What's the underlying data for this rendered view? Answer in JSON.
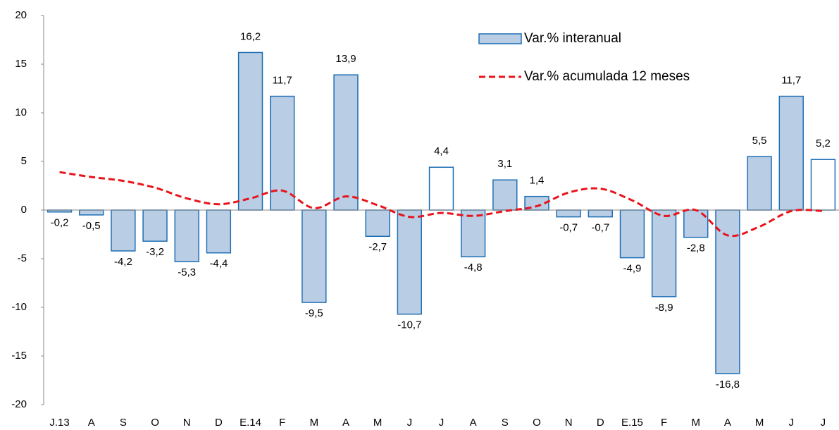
{
  "chart_data": {
    "type": "bar-line",
    "categories": [
      "J.13",
      "A",
      "S",
      "O",
      "N",
      "D",
      "E.14",
      "F",
      "M",
      "A",
      "M",
      "J",
      "J",
      "A",
      "S",
      "O",
      "N",
      "D",
      "E.15",
      "F",
      "M",
      "A",
      "M",
      "J",
      "J"
    ],
    "series": [
      {
        "name": "Var.% interanual",
        "type": "bar",
        "color": "#b9cde5",
        "edge_color": "#1f6fb5",
        "point_colors": [
          "#b9cde5",
          "#b9cde5",
          "#b9cde5",
          "#b9cde5",
          "#b9cde5",
          "#b9cde5",
          "#b9cde5",
          "#b9cde5",
          "#b9cde5",
          "#b9cde5",
          "#b9cde5",
          "#b9cde5",
          "#ffffff",
          "#b9cde5",
          "#b9cde5",
          "#b9cde5",
          "#b9cde5",
          "#b9cde5",
          "#b9cde5",
          "#b9cde5",
          "#b9cde5",
          "#b9cde5",
          "#b9cde5",
          "#b9cde5",
          "#ffffff"
        ],
        "values": [
          -0.2,
          -0.5,
          -4.2,
          -3.2,
          -5.3,
          -4.4,
          16.2,
          11.7,
          -9.5,
          13.9,
          -2.7,
          -10.7,
          4.4,
          -4.8,
          3.1,
          1.4,
          -0.7,
          -0.7,
          -4.9,
          -8.9,
          -2.8,
          -16.8,
          5.5,
          11.7,
          5.2
        ],
        "value_labels": [
          "-0,2",
          "-0,5",
          "-4,2",
          "-3,2",
          "-5,3",
          "-4,4",
          "16,2",
          "11,7",
          "-9,5",
          "13,9",
          "-2,7",
          "-10,7",
          "4,4",
          "-4,8",
          "3,1",
          "1,4",
          "-0,7",
          "-0,7",
          "-4,9",
          "-8,9",
          "-2,8",
          "-16,8",
          "5,5",
          "11,7",
          "5,2"
        ]
      },
      {
        "name": "Var.% acumulada 12 meses",
        "type": "line",
        "color": "#e8141b",
        "dashed": true,
        "values": [
          3.9,
          3.4,
          3.0,
          2.3,
          1.2,
          0.6,
          1.2,
          2.0,
          0.2,
          1.4,
          0.5,
          -0.7,
          -0.3,
          -0.6,
          -0.1,
          0.4,
          1.8,
          2.2,
          1.0,
          -0.6,
          0.0,
          -2.6,
          -1.7,
          -0.1,
          -0.1
        ]
      }
    ],
    "ylim": [
      -20,
      20
    ],
    "yticks": [
      -20,
      -15,
      -10,
      -5,
      0,
      5,
      10,
      15,
      20
    ],
    "grid": false,
    "legend": "top-right"
  }
}
